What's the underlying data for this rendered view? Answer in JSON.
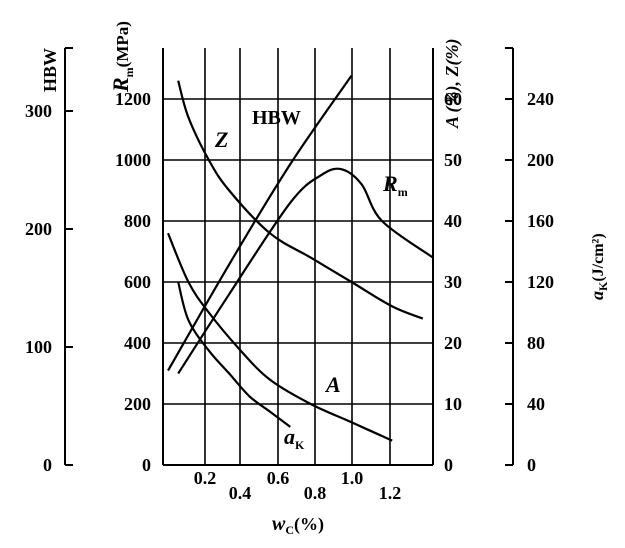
{
  "chart_data": {
    "type": "line",
    "title": "",
    "xaxes": {
      "label": "w",
      "label_sub": "C",
      "label_unit": "(%)",
      "row1_ticks": [
        "0.2",
        "0.6",
        "1.0"
      ],
      "row2_ticks": [
        "0.4",
        "0.8",
        "1.2"
      ],
      "xlim": [
        0.1,
        1.4
      ]
    },
    "yaxes": {
      "hbw": {
        "label": "HBW",
        "ticks": [
          "0",
          "100",
          "200",
          "300"
        ],
        "ylim": [
          0,
          350
        ]
      },
      "rm": {
        "label": "R",
        "label_sub": "m",
        "label_unit": "(MPa)",
        "ticks": [
          "0",
          "200",
          "400",
          "600",
          "800",
          "1000",
          "1200"
        ],
        "ylim": [
          0,
          1400
        ]
      },
      "az": {
        "label": "A (%), Z(%)",
        "ticks": [
          "0",
          "10",
          "20",
          "30",
          "40",
          "50",
          "60"
        ],
        "ylim": [
          0,
          70
        ]
      },
      "ak": {
        "label": "a",
        "label_sub": "K",
        "label_unit": "(J/cm²)",
        "ticks": [
          "0",
          "40",
          "80",
          "120",
          "160",
          "200",
          "240"
        ],
        "ylim": [
          0,
          280
        ]
      }
    },
    "series": [
      {
        "name": "HBW",
        "label": "HBW",
        "axis": "hbw",
        "x": [
          0.1,
          0.4,
          0.7,
          1.0
        ],
        "y": [
          80,
          170,
          255,
          330
        ]
      },
      {
        "name": "R",
        "label": "R",
        "label_sub": "m",
        "axis": "rm",
        "x": [
          0.15,
          0.4,
          0.7,
          0.85,
          0.95,
          1.05,
          1.15,
          1.4
        ],
        "y": [
          300,
          560,
          860,
          950,
          970,
          920,
          800,
          680
        ]
      },
      {
        "name": "Z",
        "label": "Z",
        "axis": "az",
        "x": [
          0.15,
          0.2,
          0.3,
          0.4,
          0.6,
          0.8,
          1.0,
          1.2,
          1.35
        ],
        "y": [
          63,
          57,
          50,
          45,
          38,
          34,
          30,
          26,
          24
        ]
      },
      {
        "name": "A",
        "label": "A",
        "axis": "az",
        "x": [
          0.1,
          0.2,
          0.3,
          0.45,
          0.6,
          0.8,
          1.0,
          1.2
        ],
        "y": [
          38,
          30,
          25,
          19,
          14,
          10,
          7,
          4
        ]
      },
      {
        "name": "a",
        "label": "a",
        "label_sub": "K",
        "axis": "ak",
        "x": [
          0.15,
          0.2,
          0.3,
          0.4,
          0.5,
          0.6,
          0.7
        ],
        "y": [
          120,
          95,
          75,
          60,
          45,
          35,
          25
        ]
      }
    ],
    "grid": true,
    "legend": "none"
  }
}
